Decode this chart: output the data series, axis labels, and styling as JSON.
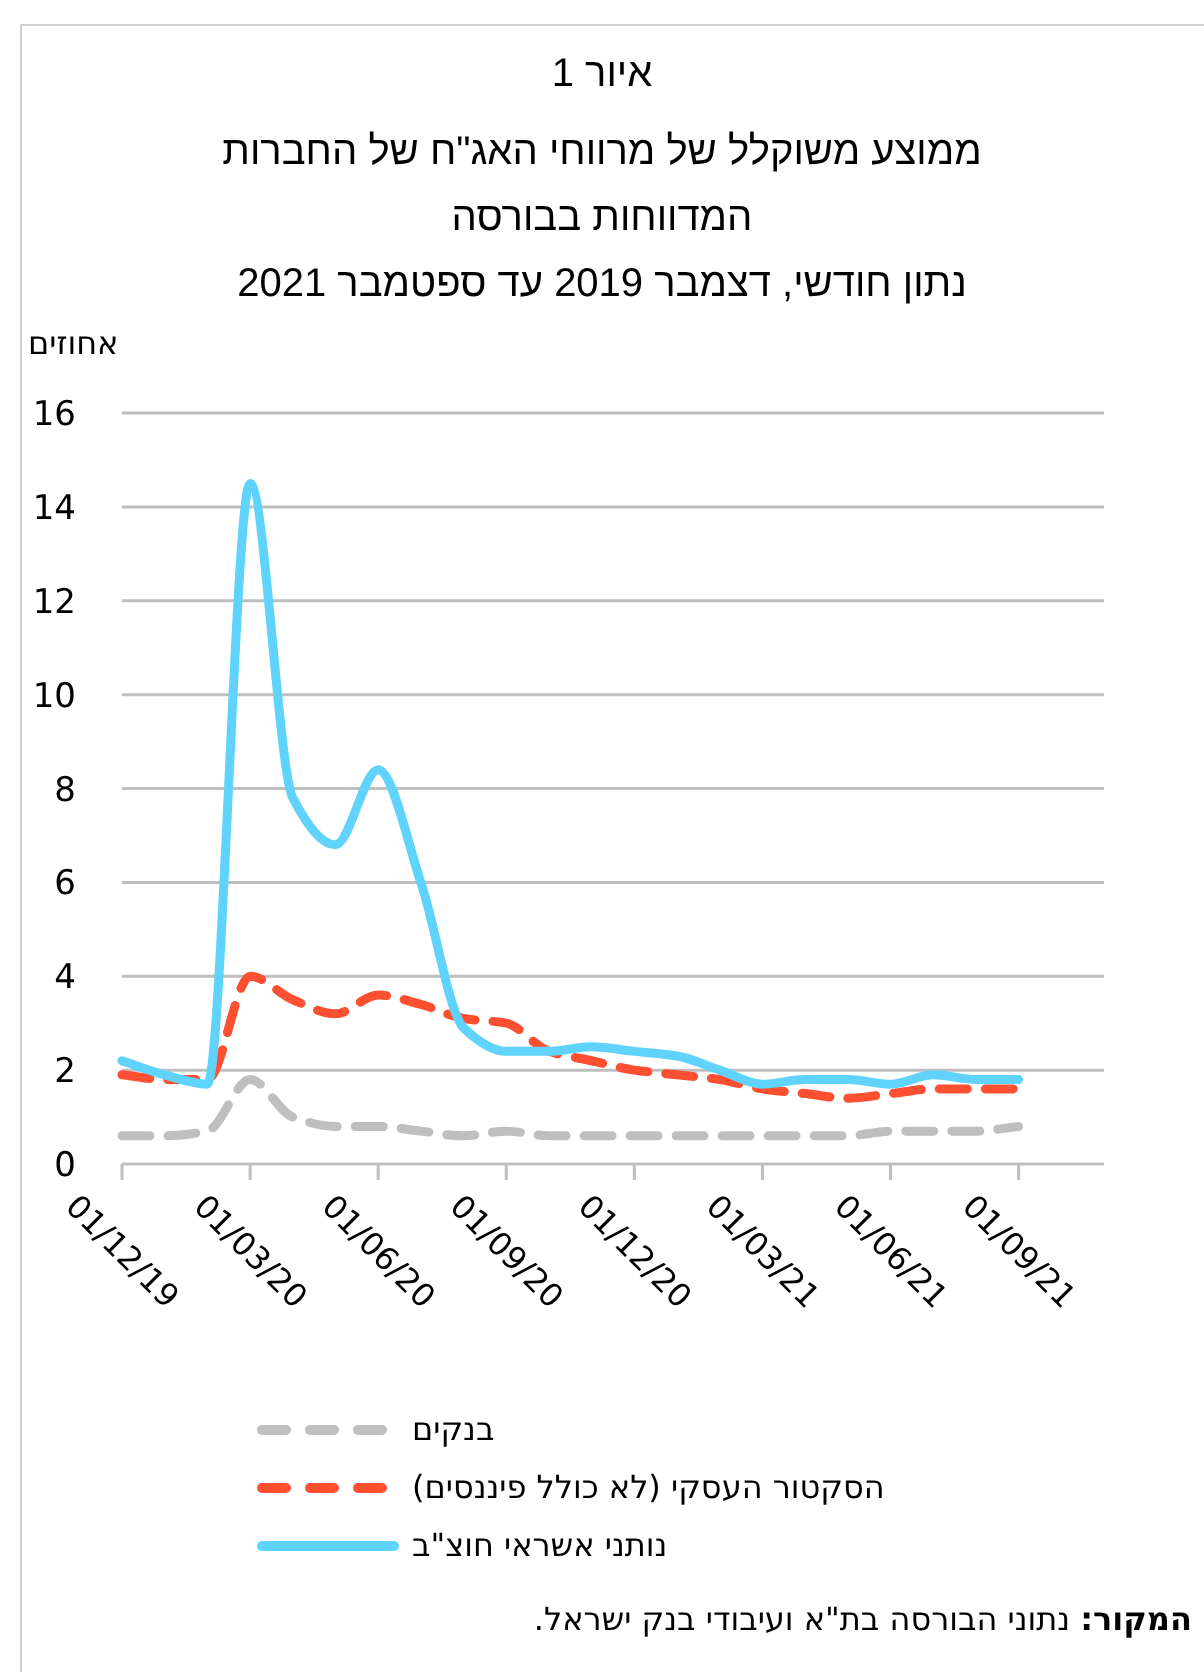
{
  "chart_data": {
    "type": "line",
    "title": "איור 1",
    "subtitle": "ממוצע משוקלל של מרווחי האג\"ח של החברות המדווחות בבורסה\nנתון חודשי, דצמבר 2019 עד ספטמבר 2021",
    "ylabel": "אחוזים",
    "x": [
      "2019-12",
      "2020-01",
      "2020-02",
      "2020-03",
      "2020-04",
      "2020-05",
      "2020-06",
      "2020-07",
      "2020-08",
      "2020-09",
      "2020-10",
      "2020-11",
      "2020-12",
      "2021-01",
      "2021-02",
      "2021-03",
      "2021-04",
      "2021-05",
      "2021-06",
      "2021-07",
      "2021-08",
      "2021-09"
    ],
    "series": [
      {
        "name": "בנקים",
        "color": "#bfbfbf",
        "line_style": "dashed",
        "values": [
          0.6,
          0.6,
          0.7,
          1.8,
          1.0,
          0.8,
          0.8,
          0.7,
          0.6,
          0.7,
          0.6,
          0.6,
          0.6,
          0.6,
          0.6,
          0.6,
          0.6,
          0.6,
          0.7,
          0.7,
          0.7,
          0.8
        ]
      },
      {
        "name": "הסקטור העסקי (לא כולל פיננסים)",
        "color": "#fc5030",
        "line_style": "dashed",
        "values": [
          1.9,
          1.8,
          1.8,
          4.0,
          3.5,
          3.2,
          3.6,
          3.4,
          3.1,
          3.0,
          2.4,
          2.2,
          2.0,
          1.9,
          1.8,
          1.6,
          1.5,
          1.4,
          1.5,
          1.6,
          1.6,
          1.6
        ]
      },
      {
        "name": "נותני אשראי חוצ\"ב",
        "color": "#5fd3fb",
        "line_style": "solid",
        "values": [
          2.2,
          1.9,
          1.7,
          14.5,
          7.8,
          6.8,
          8.4,
          6.0,
          2.9,
          2.4,
          2.4,
          2.5,
          2.4,
          2.3,
          2.0,
          1.7,
          1.8,
          1.8,
          1.7,
          1.9,
          1.8,
          1.8
        ]
      }
    ],
    "xlim": [
      "2019-12-01",
      "2021-11-01"
    ],
    "xticks": [
      {
        "value": "2019-12-01",
        "label": "01/12/19"
      },
      {
        "value": "2020-03-01",
        "label": "01/03/20"
      },
      {
        "value": "2020-06-01",
        "label": "01/06/20"
      },
      {
        "value": "2020-09-01",
        "label": "01/09/20"
      },
      {
        "value": "2020-12-01",
        "label": "01/12/20"
      },
      {
        "value": "2021-03-01",
        "label": "01/03/21"
      },
      {
        "value": "2021-06-01",
        "label": "01/06/21"
      },
      {
        "value": "2021-09-01",
        "label": "01/09/21"
      }
    ],
    "ylim": [
      0,
      16
    ],
    "yticks": [
      0,
      2,
      4,
      6,
      8,
      10,
      12,
      14,
      16
    ],
    "grid": "y",
    "legend": "bottom",
    "marker": "none",
    "annotations": [
      "**המקור:** נתוני הבורסה בת\"א ועיבודי בנק ישראל."
    ]
  }
}
